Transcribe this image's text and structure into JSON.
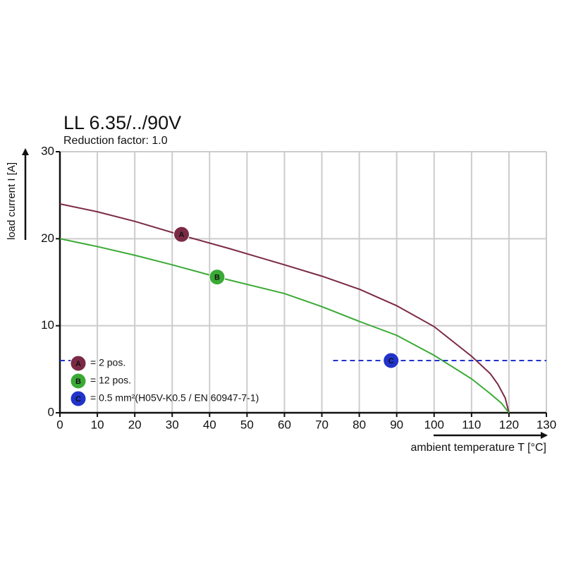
{
  "chart_data": {
    "type": "line",
    "title": "LL 6.35/../90V",
    "subtitle": "Reduction factor: 1.0",
    "y_label": "load current I [A]",
    "x_label": "ambient temperature T [°C]",
    "xlim": [
      0,
      130
    ],
    "xticks": [
      0,
      10,
      20,
      30,
      40,
      50,
      60,
      70,
      80,
      90,
      100,
      110,
      120,
      130
    ],
    "ylim": [
      0,
      30
    ],
    "yticks": [
      0,
      10,
      20,
      30
    ],
    "grid": true,
    "series": [
      {
        "name": "= 2 pos.",
        "label": "A",
        "color": "#7b2a45",
        "style": "solid",
        "x": [
          0,
          10,
          20,
          32.5,
          45,
          60,
          70,
          80,
          90,
          100,
          110,
          115,
          117,
          119,
          120
        ],
        "values": [
          24,
          23.1,
          22,
          20.4,
          18.9,
          17,
          15.7,
          14.2,
          12.3,
          9.9,
          6.5,
          4.5,
          3.3,
          1.7,
          0
        ],
        "label_x": 32.5,
        "label_y": 20.5
      },
      {
        "name": "= 12 pos.",
        "label": "B",
        "color": "#3aaa35",
        "style": "solid",
        "x": [
          0,
          10,
          20,
          30,
          42,
          60,
          70,
          80,
          90,
          100,
          110,
          115,
          118,
          120
        ],
        "values": [
          20,
          19.1,
          18.1,
          17,
          15.6,
          13.7,
          12.2,
          10.5,
          8.9,
          6.6,
          3.9,
          2.2,
          1.1,
          0
        ],
        "label_x": 42,
        "label_y": 15.6
      },
      {
        "name": "= 0.5 mm²(H05V-K0.5 / EN 60947-7-1)",
        "label": "C",
        "color": "#2233cc",
        "style": "dashed",
        "x": [
          0,
          5.6,
          30,
          73,
          130
        ],
        "values": [
          6,
          6,
          null,
          6,
          6
        ],
        "label_x": 88.5,
        "label_y": 6
      }
    ]
  }
}
